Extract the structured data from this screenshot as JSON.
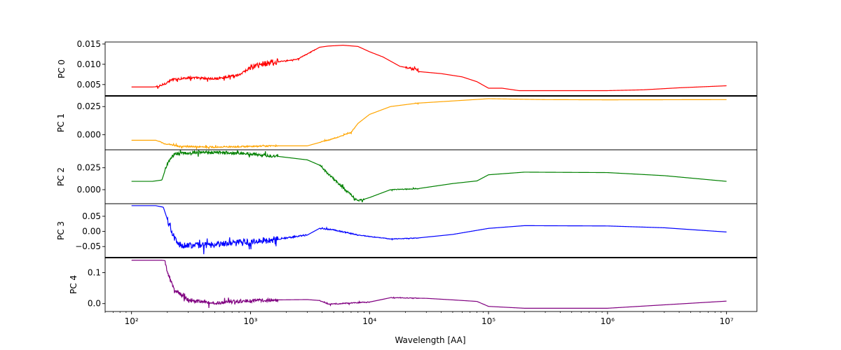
{
  "chart_data": {
    "type": "line",
    "x_scale": "log",
    "xlim": [
      60,
      18000000
    ],
    "xlabel": "Wavelength [AA]",
    "x_ticks": [
      {
        "value": 100,
        "label": "10²"
      },
      {
        "value": 1000,
        "label": "10³"
      },
      {
        "value": 10000,
        "label": "10⁴"
      },
      {
        "value": 100000,
        "label": "10⁵"
      },
      {
        "value": 1000000,
        "label": "10⁶"
      },
      {
        "value": 10000000,
        "label": "10⁷"
      }
    ],
    "grid": false,
    "panels": [
      {
        "ylabel": "PC 0",
        "color": "#ff0000",
        "ylim": [
          0.0022,
          0.0155
        ],
        "y_ticks": [
          {
            "value": 0.005,
            "label": "0.005"
          },
          {
            "value": 0.01,
            "label": "0.010"
          },
          {
            "value": 0.015,
            "label": "0.015"
          }
        ],
        "noise": [
          {
            "from": 160,
            "to": 1000,
            "amp": 0.0006
          },
          {
            "from": 1000,
            "to": 1700,
            "amp": 0.0016
          },
          {
            "from": 1700,
            "to": 3500,
            "amp": 0.0002
          },
          {
            "from": 20000,
            "to": 26000,
            "amp": 0.0005
          }
        ],
        "x": [
          100,
          150,
          170,
          190,
          220,
          300,
          500,
          800,
          1000,
          1300,
          1700,
          2500,
          3500,
          3800,
          4500,
          6000,
          8000,
          10000,
          13000,
          18000,
          25000,
          26000,
          40000,
          60000,
          80000,
          100000,
          130000,
          180000,
          1000000,
          2000000,
          4000000,
          10000000
        ],
        "y": [
          0.0044,
          0.0044,
          0.0045,
          0.0052,
          0.0062,
          0.0067,
          0.0064,
          0.0074,
          0.0092,
          0.0102,
          0.0106,
          0.0113,
          0.0136,
          0.0142,
          0.0145,
          0.0147,
          0.0144,
          0.0131,
          0.0118,
          0.0095,
          0.0087,
          0.0082,
          0.0077,
          0.0069,
          0.0057,
          0.0041,
          0.0041,
          0.0035,
          0.0035,
          0.0037,
          0.0042,
          0.0047
        ]
      },
      {
        "ylabel": "PC 1",
        "color": "#ffa500",
        "ylim": [
          -0.0135,
          0.0345
        ],
        "y_ticks": [
          {
            "value": 0.0,
            "label": "0.000"
          },
          {
            "value": 0.025,
            "label": "0.025"
          }
        ],
        "noise": [
          {
            "from": 170,
            "to": 1700,
            "amp": 0.0012
          },
          {
            "from": 3800,
            "to": 7500,
            "amp": 0.0008
          },
          {
            "from": 24000,
            "to": 26000,
            "amp": 0.0006
          }
        ],
        "x": [
          100,
          160,
          190,
          250,
          500,
          1000,
          1700,
          3000,
          3800,
          5000,
          7000,
          8000,
          10000,
          15000,
          25000,
          50000,
          100000,
          300000,
          1000000,
          10000000
        ],
        "y": [
          -0.005,
          -0.005,
          -0.008,
          -0.0105,
          -0.011,
          -0.0105,
          -0.01,
          -0.01,
          -0.007,
          -0.0035,
          0.002,
          0.01,
          0.018,
          0.025,
          0.028,
          0.03,
          0.032,
          0.0312,
          0.031,
          0.0312
        ]
      },
      {
        "ylabel": "PC 2",
        "color": "#008000",
        "ylim": [
          -0.016,
          0.0455
        ],
        "y_ticks": [
          {
            "value": 0.0,
            "label": "0.000"
          },
          {
            "value": 0.025,
            "label": "0.025"
          }
        ],
        "noise": [
          {
            "from": 190,
            "to": 1700,
            "amp": 0.0035
          },
          {
            "from": 3800,
            "to": 9000,
            "amp": 0.0025
          },
          {
            "from": 15000,
            "to": 26000,
            "amp": 0.0008
          }
        ],
        "x": [
          100,
          150,
          180,
          200,
          230,
          400,
          1000,
          1700,
          3000,
          3800,
          4500,
          6000,
          8000,
          10000,
          15000,
          25000,
          50000,
          80000,
          100000,
          200000,
          1000000,
          3000000,
          10000000
        ],
        "y": [
          0.0095,
          0.0095,
          0.011,
          0.03,
          0.041,
          0.043,
          0.041,
          0.038,
          0.034,
          0.028,
          0.018,
          0.002,
          -0.013,
          -0.009,
          0.0,
          0.001,
          0.007,
          0.01,
          0.017,
          0.02,
          0.0195,
          0.016,
          0.0095
        ]
      },
      {
        "ylabel": "PC 3",
        "color": "#0000ff",
        "ylim": [
          -0.0865,
          0.0915
        ],
        "y_ticks": [
          {
            "value": -0.05,
            "label": "−0.05"
          },
          {
            "value": 0.0,
            "label": "0.00"
          },
          {
            "value": 0.05,
            "label": "0.05"
          }
        ],
        "noise": [
          {
            "from": 200,
            "to": 1700,
            "amp": 0.022
          },
          {
            "from": 1700,
            "to": 3000,
            "amp": 0.005
          },
          {
            "from": 3800,
            "to": 8000,
            "amp": 0.004
          },
          {
            "from": 8000,
            "to": 26000,
            "amp": 0.002
          }
        ],
        "x": [
          100,
          160,
          185,
          200,
          220,
          250,
          400,
          1000,
          1700,
          3000,
          3800,
          5000,
          8000,
          15000,
          25000,
          50000,
          100000,
          200000,
          1000000,
          3000000,
          10000000
        ],
        "y": [
          0.085,
          0.085,
          0.08,
          0.04,
          -0.01,
          -0.045,
          -0.045,
          -0.035,
          -0.025,
          -0.012,
          0.01,
          0.005,
          -0.012,
          -0.025,
          -0.022,
          -0.01,
          0.01,
          0.019,
          0.018,
          0.012,
          -0.002
        ]
      },
      {
        "ylabel": "PC 4",
        "color": "#800080",
        "ylim": [
          -0.0255,
          0.1485
        ],
        "y_ticks": [
          {
            "value": 0.0,
            "label": "0.0"
          },
          {
            "value": 0.1,
            "label": "0.1"
          }
        ],
        "noise": [
          {
            "from": 190,
            "to": 1700,
            "amp": 0.012
          },
          {
            "from": 3800,
            "to": 10000,
            "amp": 0.003
          },
          {
            "from": 15000,
            "to": 26000,
            "amp": 0.002
          }
        ],
        "x": [
          100,
          180,
          190,
          200,
          230,
          300,
          500,
          1000,
          1700,
          3000,
          3800,
          4500,
          10000,
          15000,
          30000,
          50000,
          80000,
          100000,
          200000,
          1000000,
          3000000,
          10000000
        ],
        "y": [
          0.14,
          0.14,
          0.139,
          0.1,
          0.045,
          0.01,
          0.002,
          0.01,
          0.012,
          0.013,
          0.01,
          -0.002,
          0.005,
          0.019,
          0.017,
          0.012,
          0.007,
          -0.009,
          -0.015,
          -0.015,
          -0.004,
          0.008
        ]
      }
    ]
  }
}
